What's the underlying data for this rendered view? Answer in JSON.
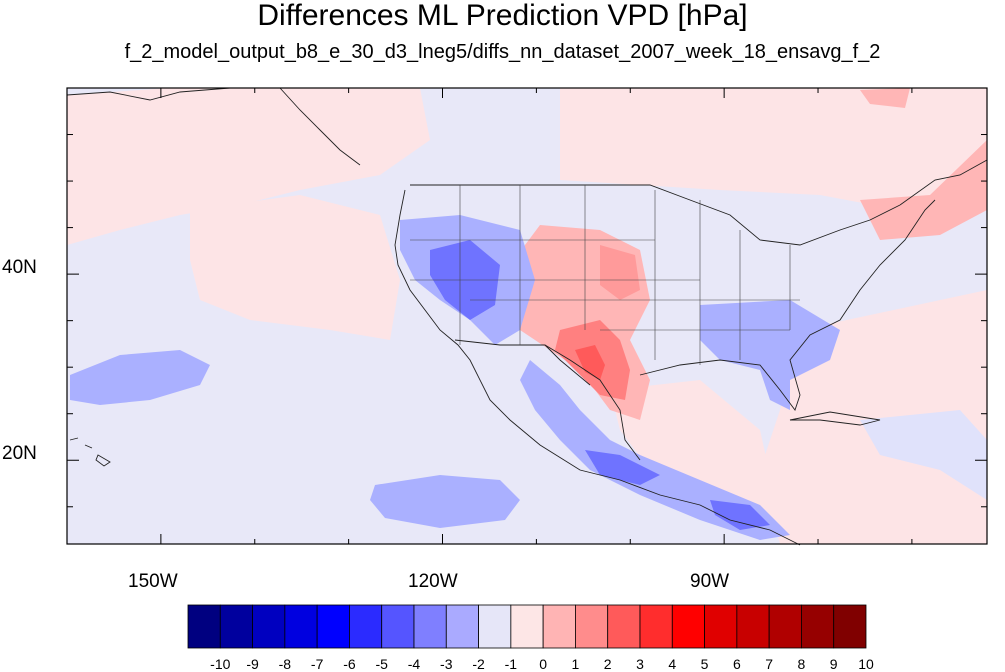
{
  "title": "Differences ML Prediction VPD [hPa]",
  "subtitle": "f_2_model_output_b8_e_30_d3_lneg5/diffs_nn_dataset_2007_week_18_ensavg_f_2",
  "map": {
    "lon_range": [
      -160,
      -62
    ],
    "lat_range": [
      11,
      60
    ],
    "lon_ticks": [
      {
        "value": -150,
        "label": "150W"
      },
      {
        "value": -120,
        "label": "120W"
      },
      {
        "value": -90,
        "label": "90W"
      }
    ],
    "lat_ticks": [
      {
        "value": 40,
        "label": "40N"
      },
      {
        "value": 20,
        "label": "20N"
      }
    ],
    "background_color": "#e8e8f8"
  },
  "colorbar": {
    "labels": [
      "-10",
      "-9",
      "-8",
      "-7",
      "-6",
      "-5",
      "-4",
      "-3",
      "-2",
      "-1",
      "0",
      "1",
      "2",
      "3",
      "4",
      "5",
      "6",
      "7",
      "8",
      "9",
      "10"
    ],
    "colors": [
      "#000080",
      "#00009e",
      "#0000c0",
      "#0000e0",
      "#0000ff",
      "#2b2bff",
      "#5555ff",
      "#7f7fff",
      "#aaaaff",
      "#e6e6f8",
      "#fde6e6",
      "#ffb4b4",
      "#ff8c8c",
      "#ff5a5a",
      "#ff2d2d",
      "#ff0000",
      "#e00000",
      "#c80000",
      "#b00000",
      "#960000",
      "#800000"
    ]
  }
}
